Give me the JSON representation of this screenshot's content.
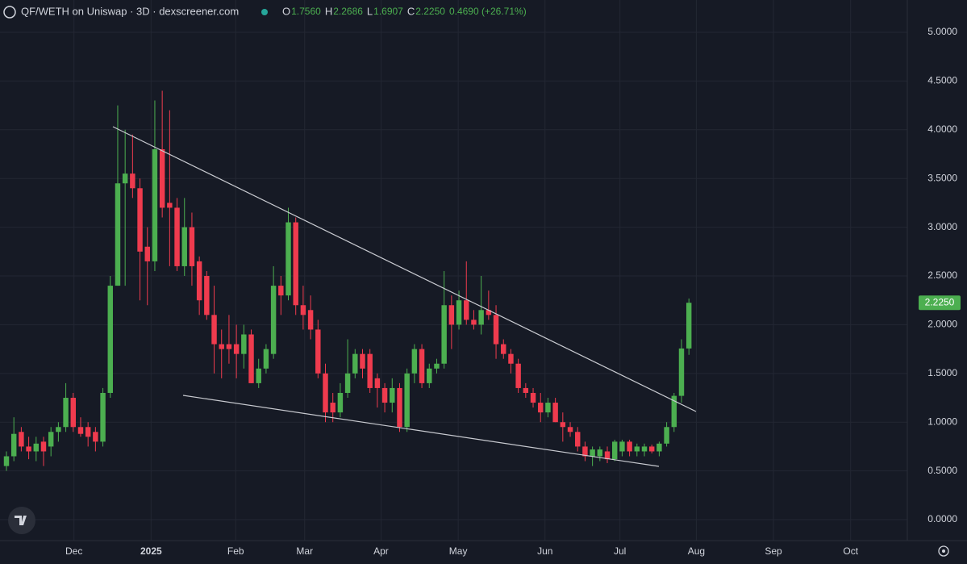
{
  "chart_data": {
    "type": "candlestick",
    "title": "QF/WETH on Uniswap · 3D · dexscreener.com",
    "ohlc_legend": [
      {
        "key": "O",
        "value": "1.7560"
      },
      {
        "key": "H",
        "value": "2.2686"
      },
      {
        "key": "L",
        "value": "1.6907"
      },
      {
        "key": "C",
        "value": "2.2250"
      }
    ],
    "change": "0.4690 (+26.71%)",
    "last_price": {
      "value": 2.225,
      "label": "2.2250"
    },
    "up_color": "#4caf50",
    "down_color": "#ef3b4e",
    "grid": true,
    "categories": [
      null,
      null,
      null,
      null,
      null,
      null,
      null,
      null,
      null,
      null,
      null,
      null,
      null,
      null,
      null,
      null,
      null,
      null,
      null,
      null,
      null,
      null,
      null,
      null,
      null,
      null,
      null,
      null,
      null,
      null,
      null,
      null,
      null,
      null,
      null,
      null,
      null,
      null,
      null,
      null,
      null,
      null,
      null,
      null,
      null,
      null,
      null,
      null,
      null,
      null,
      null,
      null,
      null,
      null,
      null,
      null,
      null,
      null,
      null,
      null,
      null,
      null,
      null,
      null,
      null,
      null,
      null,
      null,
      null,
      null,
      null,
      null,
      null,
      null,
      null,
      null,
      null,
      null,
      null,
      null,
      null,
      null,
      null,
      null,
      null,
      null,
      null,
      null,
      null,
      null,
      null,
      null,
      null
    ],
    "ohlc": [
      [
        0.55,
        0.7,
        0.5,
        0.65
      ],
      [
        0.65,
        1.05,
        0.6,
        0.88
      ],
      [
        0.9,
        0.95,
        0.7,
        0.75
      ],
      [
        0.75,
        0.85,
        0.62,
        0.7
      ],
      [
        0.7,
        0.85,
        0.6,
        0.78
      ],
      [
        0.8,
        0.85,
        0.55,
        0.7
      ],
      [
        0.75,
        0.95,
        0.65,
        0.9
      ],
      [
        0.9,
        1.0,
        0.8,
        0.95
      ],
      [
        0.95,
        1.4,
        0.9,
        1.25
      ],
      [
        1.25,
        1.3,
        0.9,
        0.95
      ],
      [
        0.95,
        1.05,
        0.85,
        0.88
      ],
      [
        0.95,
        1.0,
        0.75,
        0.85
      ],
      [
        0.9,
        0.95,
        0.7,
        0.8
      ],
      [
        0.8,
        1.35,
        0.75,
        1.3
      ],
      [
        1.3,
        2.5,
        1.25,
        2.4
      ],
      [
        2.4,
        4.25,
        2.4,
        3.45
      ],
      [
        3.45,
        4.0,
        2.4,
        3.55
      ],
      [
        3.55,
        3.95,
        3.3,
        3.4
      ],
      [
        3.4,
        3.5,
        2.25,
        2.75
      ],
      [
        2.8,
        3.0,
        2.2,
        2.65
      ],
      [
        2.65,
        4.3,
        2.55,
        3.8
      ],
      [
        3.8,
        4.4,
        3.1,
        3.2
      ],
      [
        3.25,
        4.2,
        2.6,
        3.2
      ],
      [
        3.2,
        3.3,
        2.55,
        2.6
      ],
      [
        2.6,
        3.3,
        2.5,
        3.0
      ],
      [
        3.0,
        3.15,
        2.4,
        2.6
      ],
      [
        2.65,
        2.7,
        2.1,
        2.25
      ],
      [
        2.5,
        2.55,
        2.05,
        2.1
      ],
      [
        2.1,
        2.4,
        1.5,
        1.8
      ],
      [
        1.8,
        1.95,
        1.45,
        1.75
      ],
      [
        1.8,
        2.1,
        1.6,
        1.75
      ],
      [
        1.8,
        2.0,
        1.45,
        1.7
      ],
      [
        1.7,
        2.0,
        1.55,
        1.9
      ],
      [
        1.9,
        1.95,
        1.4,
        1.4
      ],
      [
        1.4,
        1.65,
        1.35,
        1.55
      ],
      [
        1.55,
        1.8,
        1.5,
        1.75
      ],
      [
        1.7,
        2.6,
        1.65,
        2.4
      ],
      [
        2.4,
        2.5,
        2.1,
        2.3
      ],
      [
        2.3,
        3.2,
        2.25,
        3.05
      ],
      [
        3.05,
        3.1,
        2.1,
        2.2
      ],
      [
        2.2,
        2.4,
        1.95,
        2.1
      ],
      [
        2.15,
        2.3,
        1.85,
        1.95
      ],
      [
        1.95,
        2.05,
        1.45,
        1.5
      ],
      [
        1.5,
        1.6,
        1.0,
        1.1
      ],
      [
        1.2,
        1.3,
        1.0,
        1.1
      ],
      [
        1.1,
        1.4,
        1.05,
        1.3
      ],
      [
        1.3,
        1.85,
        1.25,
        1.5
      ],
      [
        1.5,
        1.75,
        1.45,
        1.7
      ],
      [
        1.7,
        1.75,
        1.45,
        1.55
      ],
      [
        1.7,
        1.75,
        1.3,
        1.35
      ],
      [
        1.45,
        1.5,
        1.15,
        1.35
      ],
      [
        1.35,
        1.4,
        1.1,
        1.2
      ],
      [
        1.2,
        1.45,
        1.1,
        1.35
      ],
      [
        1.35,
        1.4,
        0.9,
        0.95
      ],
      [
        0.95,
        1.55,
        0.9,
        1.5
      ],
      [
        1.5,
        1.8,
        1.4,
        1.75
      ],
      [
        1.75,
        1.8,
        1.35,
        1.4
      ],
      [
        1.4,
        1.6,
        1.35,
        1.55
      ],
      [
        1.55,
        1.65,
        1.5,
        1.6
      ],
      [
        1.6,
        2.55,
        1.55,
        2.2
      ],
      [
        2.2,
        2.3,
        1.75,
        2.0
      ],
      [
        2.0,
        2.35,
        1.95,
        2.25
      ],
      [
        2.25,
        2.65,
        2.0,
        2.05
      ],
      [
        2.05,
        2.15,
        1.95,
        2.0
      ],
      [
        2.0,
        2.5,
        1.9,
        2.15
      ],
      [
        2.15,
        2.35,
        2.05,
        2.1
      ],
      [
        2.1,
        2.2,
        1.65,
        1.8
      ],
      [
        1.8,
        1.85,
        1.65,
        1.7
      ],
      [
        1.7,
        1.75,
        1.5,
        1.6
      ],
      [
        1.6,
        1.65,
        1.3,
        1.35
      ],
      [
        1.35,
        1.4,
        1.25,
        1.3
      ],
      [
        1.3,
        1.35,
        1.15,
        1.2
      ],
      [
        1.2,
        1.3,
        1.0,
        1.1
      ],
      [
        1.1,
        1.25,
        1.05,
        1.2
      ],
      [
        1.2,
        1.25,
        1.0,
        1.0
      ],
      [
        1.0,
        1.1,
        0.8,
        0.95
      ],
      [
        0.95,
        1.0,
        0.85,
        0.9
      ],
      [
        0.9,
        0.95,
        0.7,
        0.75
      ],
      [
        0.75,
        0.8,
        0.6,
        0.65
      ],
      [
        0.65,
        0.75,
        0.55,
        0.72
      ],
      [
        0.65,
        0.75,
        0.6,
        0.72
      ],
      [
        0.7,
        0.75,
        0.58,
        0.62
      ],
      [
        0.62,
        0.82,
        0.6,
        0.8
      ],
      [
        0.7,
        0.82,
        0.65,
        0.8
      ],
      [
        0.8,
        0.82,
        0.65,
        0.7
      ],
      [
        0.7,
        0.78,
        0.65,
        0.75
      ],
      [
        0.7,
        0.78,
        0.65,
        0.75
      ],
      [
        0.75,
        0.77,
        0.68,
        0.7
      ],
      [
        0.7,
        0.8,
        0.65,
        0.78
      ],
      [
        0.78,
        1.0,
        0.75,
        0.95
      ],
      [
        0.95,
        1.3,
        0.9,
        1.27
      ],
      [
        1.27,
        1.85,
        1.2,
        1.756
      ],
      [
        1.756,
        2.2686,
        1.6907,
        2.225
      ]
    ],
    "xlim": [
      -0.87,
      120.9
    ],
    "xticks": [
      {
        "value": 9.1,
        "label": "Dec"
      },
      {
        "value": 19.5,
        "label": "2025"
      },
      {
        "value": 30.9,
        "label": "Feb"
      },
      {
        "value": 40.2,
        "label": "Mar"
      },
      {
        "value": 50.5,
        "label": "Apr"
      },
      {
        "value": 60.9,
        "label": "May"
      },
      {
        "value": 72.6,
        "label": "Jun"
      },
      {
        "value": 82.7,
        "label": "Jul"
      },
      {
        "value": 93.0,
        "label": "Aug"
      },
      {
        "value": 103.4,
        "label": "Sep"
      },
      {
        "value": 113.8,
        "label": "Oct"
      }
    ],
    "ylim": [
      -0.215,
      5.331
    ],
    "yticks": [
      {
        "value": 0,
        "label": "0.0000"
      },
      {
        "value": 0.5,
        "label": "0.5000"
      },
      {
        "value": 1,
        "label": "1.0000"
      },
      {
        "value": 1.5,
        "label": "1.5000"
      },
      {
        "value": 2,
        "label": "2.0000"
      },
      {
        "value": 2.5,
        "label": "2.5000"
      },
      {
        "value": 3,
        "label": "3.0000"
      },
      {
        "value": 3.5,
        "label": "3.5000"
      },
      {
        "value": 4,
        "label": "4.0000"
      },
      {
        "value": 4.5,
        "label": "4.5000"
      },
      {
        "value": 5,
        "label": "5.0000"
      }
    ]
  }
}
